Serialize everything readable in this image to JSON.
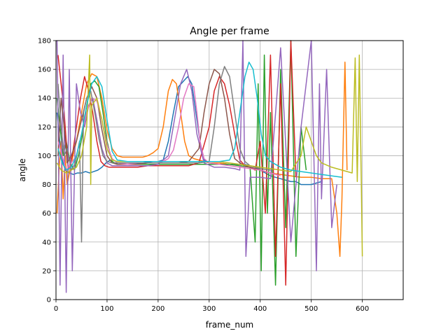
{
  "chart_data": {
    "type": "line",
    "title": "Angle per frame",
    "xlabel": "frame_num",
    "ylabel": "angle",
    "xlim": [
      0,
      680
    ],
    "ylim": [
      0,
      180
    ],
    "xticks": [
      0,
      100,
      200,
      300,
      400,
      500,
      600
    ],
    "yticks": [
      0,
      20,
      40,
      60,
      80,
      100,
      120,
      140,
      160,
      180
    ],
    "grid": true,
    "legend": "none",
    "series": [
      {
        "color": "#1f77b4",
        "x": [
          2,
          10,
          18,
          26,
          34,
          42,
          50,
          58,
          66,
          74,
          82,
          90,
          98,
          106,
          114,
          122,
          130,
          150,
          170,
          190,
          200,
          210,
          220,
          230,
          240,
          250,
          258,
          266,
          274,
          282,
          290,
          300,
          320,
          340,
          360,
          370,
          380,
          390,
          400,
          410,
          420,
          430,
          440,
          450,
          460,
          470,
          480,
          490,
          500,
          510,
          520
        ],
        "y": [
          130,
          100,
          90,
          88,
          87,
          88,
          88,
          89,
          88,
          89,
          90,
          92,
          95,
          97,
          95,
          94,
          94,
          94,
          95,
          96,
          96,
          97,
          110,
          130,
          148,
          152,
          155,
          150,
          130,
          110,
          97,
          95,
          95,
          94,
          94,
          94,
          93,
          92,
          90,
          88,
          86,
          85,
          84,
          83,
          82,
          82,
          80,
          80,
          80,
          81,
          82
        ]
      },
      {
        "color": "#ff7f0e",
        "x": [
          2,
          6,
          10,
          14,
          18,
          22,
          30,
          40,
          50,
          60,
          70,
          80,
          90,
          100,
          110,
          120,
          130,
          150,
          170,
          180,
          190,
          200,
          210,
          220,
          228,
          236,
          244,
          252,
          260,
          270,
          280,
          300,
          320,
          340,
          360,
          380,
          400,
          420,
          440,
          460,
          480,
          500,
          520,
          540,
          550,
          556,
          560,
          566,
          570
        ],
        "y": [
          60,
          90,
          110,
          70,
          100,
          80,
          95,
          110,
          130,
          150,
          157,
          155,
          140,
          118,
          105,
          100,
          99,
          99,
          99,
          100,
          102,
          105,
          120,
          145,
          153,
          150,
          130,
          110,
          100,
          98,
          97,
          95,
          95,
          94,
          93,
          92,
          90,
          88,
          87,
          86,
          85,
          85,
          84,
          84,
          60,
          30,
          70,
          165,
          90
        ]
      },
      {
        "color": "#2ca02c",
        "x": [
          2,
          8,
          14,
          20,
          28,
          36,
          44,
          52,
          60,
          68,
          76,
          84,
          92,
          100,
          110,
          120,
          140,
          160,
          180,
          200,
          220,
          240,
          260,
          280,
          300,
          320,
          340,
          360,
          380,
          390,
          396,
          402,
          408,
          414,
          420,
          430,
          440,
          450,
          460,
          470,
          480,
          490
        ],
        "y": [
          140,
          120,
          100,
          110,
          95,
          90,
          100,
          115,
          135,
          150,
          152,
          148,
          130,
          110,
          96,
          94,
          94,
          94,
          94,
          94,
          94,
          94,
          94,
          94,
          94,
          94,
          94,
          93,
          92,
          40,
          150,
          20,
          170,
          60,
          130,
          10,
          160,
          50,
          180,
          30,
          120,
          90
        ]
      },
      {
        "color": "#d62728",
        "x": [
          4,
          10,
          16,
          24,
          32,
          40,
          48,
          56,
          64,
          72,
          80,
          88,
          96,
          104,
          112,
          120,
          140,
          160,
          180,
          200,
          220,
          240,
          260,
          280,
          300,
          310,
          320,
          330,
          340,
          350,
          360,
          370,
          380,
          390,
          400,
          410,
          420,
          430,
          440,
          450,
          460,
          470
        ],
        "y": [
          170,
          150,
          130,
          90,
          100,
          120,
          140,
          155,
          145,
          130,
          110,
          96,
          93,
          92,
          92,
          92,
          92,
          92,
          93,
          93,
          93,
          93,
          93,
          95,
          120,
          145,
          155,
          150,
          135,
          115,
          97,
          93,
          92,
          90,
          110,
          60,
          170,
          30,
          150,
          10,
          180,
          85
        ]
      },
      {
        "color": "#9467bd",
        "x": [
          2,
          8,
          14,
          20,
          26,
          32,
          40,
          48,
          56,
          64,
          72,
          80,
          90,
          100,
          110,
          120,
          140,
          160,
          180,
          200,
          220,
          232,
          244,
          256,
          266,
          276,
          290,
          310,
          330,
          350,
          360,
          366,
          372,
          380,
          400,
          420,
          440,
          460,
          480,
          500,
          510,
          516,
          520,
          530,
          540,
          550
        ],
        "y": [
          180,
          10,
          170,
          5,
          160,
          20,
          150,
          130,
          120,
          135,
          140,
          125,
          105,
          95,
          93,
          93,
          93,
          93,
          93,
          94,
          100,
          125,
          150,
          160,
          145,
          115,
          95,
          92,
          92,
          91,
          90,
          180,
          30,
          85,
          85,
          84,
          175,
          40,
          120,
          180,
          20,
          150,
          70,
          160,
          50,
          80
        ]
      },
      {
        "color": "#8c564b",
        "x": [
          4,
          10,
          16,
          22,
          30,
          40,
          50,
          60,
          70,
          80,
          90,
          100,
          110,
          120,
          140,
          160,
          180,
          200,
          220,
          240,
          260,
          280,
          290,
          300,
          310,
          320,
          330,
          340,
          350,
          360,
          370,
          380,
          390,
          400,
          410,
          420
        ],
        "y": [
          100,
          140,
          120,
          95,
          100,
          110,
          125,
          140,
          148,
          140,
          118,
          100,
          95,
          94,
          94,
          94,
          95,
          95,
          95,
          95,
          96,
          105,
          130,
          150,
          160,
          157,
          140,
          115,
          98,
          95,
          93,
          92,
          91,
          90,
          89,
          88
        ]
      },
      {
        "color": "#e377c2",
        "x": [
          4,
          12,
          20,
          30,
          40,
          50,
          60,
          70,
          80,
          90,
          100,
          110,
          120,
          140,
          160,
          180,
          200,
          210,
          220,
          230,
          240,
          250,
          260,
          270,
          276,
          282,
          290,
          300,
          320,
          340,
          360,
          380,
          400,
          420,
          440
        ],
        "y": [
          110,
          100,
          90,
          95,
          100,
          115,
          130,
          140,
          138,
          125,
          108,
          98,
          95,
          94,
          95,
          95,
          95,
          96,
          98,
          104,
          120,
          140,
          150,
          148,
          130,
          110,
          98,
          95,
          94,
          93,
          92,
          91,
          90,
          88,
          86
        ]
      },
      {
        "color": "#7f7f7f",
        "x": [
          4,
          10,
          16,
          22,
          30,
          38,
          46,
          50,
          54,
          60,
          68,
          76,
          84,
          92,
          100,
          110,
          120,
          140,
          160,
          180,
          200,
          220,
          240,
          260,
          280,
          300,
          310,
          320,
          330,
          340,
          350,
          360,
          370,
          380,
          400,
          420
        ],
        "y": [
          150,
          120,
          100,
          105,
          90,
          95,
          110,
          40,
          130,
          140,
          145,
          130,
          112,
          100,
          96,
          95,
          95,
          95,
          95,
          95,
          95,
          95,
          95,
          95,
          95,
          96,
          120,
          150,
          162,
          155,
          130,
          105,
          96,
          93,
          91,
          90
        ]
      },
      {
        "color": "#bcbd22",
        "x": [
          2,
          10,
          20,
          30,
          40,
          50,
          60,
          66,
          68,
          70,
          80,
          90,
          100,
          110,
          120,
          140,
          160,
          180,
          200,
          220,
          240,
          260,
          280,
          300,
          320,
          340,
          360,
          380,
          400,
          420,
          440,
          460,
          480,
          490,
          500,
          510,
          520,
          540,
          560,
          580,
          586,
          590,
          594,
          598,
          600
        ],
        "y": [
          95,
          90,
          88,
          90,
          92,
          100,
          120,
          170,
          80,
          135,
          140,
          125,
          105,
          97,
          96,
          96,
          96,
          96,
          96,
          96,
          96,
          96,
          96,
          96,
          96,
          95,
          94,
          93,
          92,
          91,
          90,
          89,
          100,
          120,
          110,
          100,
          95,
          92,
          90,
          88,
          168,
          82,
          170,
          80,
          30
        ]
      },
      {
        "color": "#17becf",
        "x": [
          4,
          12,
          20,
          30,
          40,
          50,
          60,
          70,
          80,
          90,
          100,
          110,
          120,
          140,
          160,
          180,
          200,
          220,
          240,
          260,
          280,
          300,
          320,
          340,
          350,
          360,
          370,
          378,
          386,
          394,
          402,
          410,
          420,
          430,
          440,
          460,
          480,
          500,
          520,
          540,
          560
        ],
        "y": [
          105,
          95,
          90,
          92,
          100,
          115,
          135,
          150,
          155,
          148,
          125,
          103,
          97,
          96,
          96,
          96,
          96,
          96,
          96,
          96,
          96,
          96,
          96,
          97,
          105,
          130,
          155,
          165,
          160,
          140,
          115,
          100,
          96,
          94,
          92,
          90,
          89,
          88,
          87,
          86,
          85
        ]
      }
    ]
  }
}
